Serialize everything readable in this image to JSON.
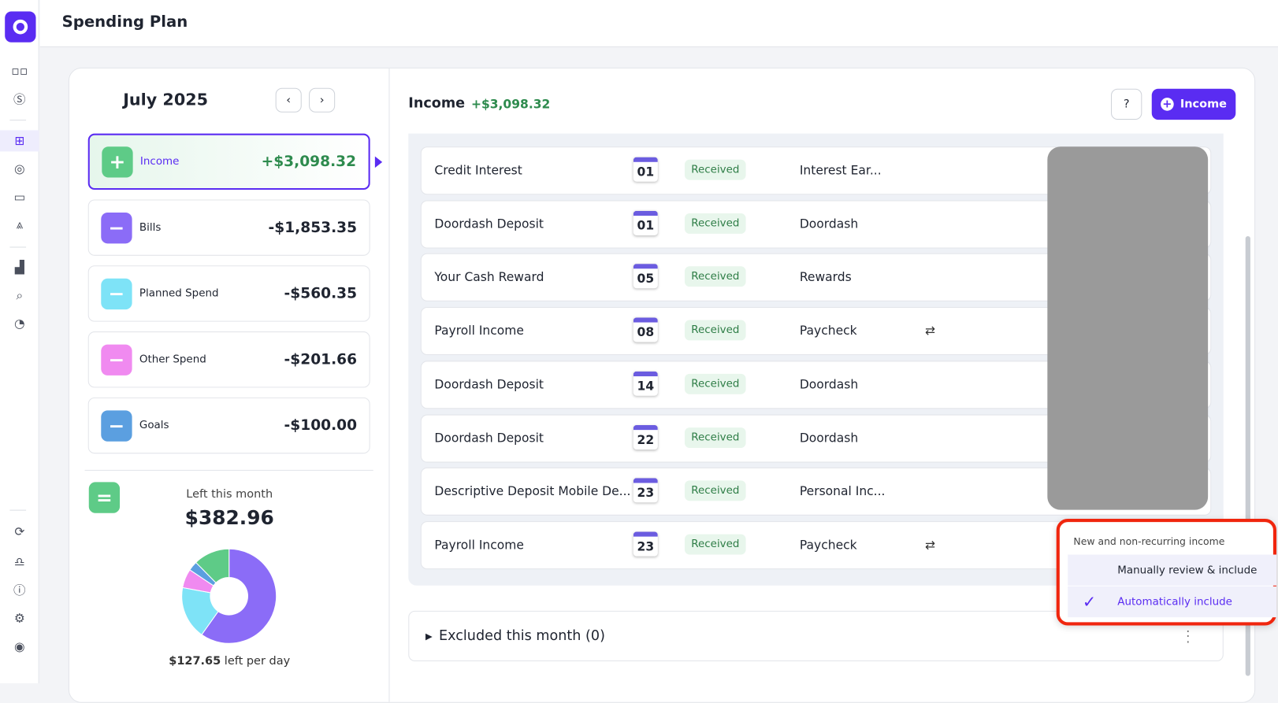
{
  "header": {
    "title": "Spending Plan"
  },
  "sidebar": {
    "icons": [
      "dashboard-icon",
      "cashflow-icon",
      "spending-plan-icon",
      "goals-icon",
      "calendar-icon",
      "investments-icon",
      "reports-icon",
      "transactions-search-icon",
      "pie-chart-icon",
      "sync-icon",
      "notifications-icon",
      "help-icon",
      "settings-icon",
      "profile-icon"
    ]
  },
  "summary": {
    "month": "July 2025",
    "categories": [
      {
        "label": "Income",
        "amount": "+$3,098.32",
        "color": "#5ecb87",
        "sign": "+"
      },
      {
        "label": "Bills",
        "amount": "-$1,853.35",
        "color": "#8b6cf7",
        "sign": "−"
      },
      {
        "label": "Planned Spend",
        "amount": "-$560.35",
        "color": "#7ee3f7",
        "sign": "−"
      },
      {
        "label": "Other Spend",
        "amount": "-$201.66",
        "color": "#f08af0",
        "sign": "−"
      },
      {
        "label": "Goals",
        "amount": "-$100.00",
        "color": "#5b9fe0",
        "sign": "−"
      }
    ],
    "left_label": "Left this month",
    "left_amount": "$382.96",
    "per_day_amount": "$127.65",
    "per_day_label": " left per day",
    "donut": [
      {
        "name": "Bills",
        "value": 1853.35,
        "color": "#8b6cf7"
      },
      {
        "name": "Planned Spend",
        "value": 560.35,
        "color": "#7ee3f7"
      },
      {
        "name": "Other Spend",
        "value": 201.66,
        "color": "#f08af0"
      },
      {
        "name": "Goals",
        "value": 100.0,
        "color": "#5b9fe0"
      },
      {
        "name": "Left",
        "value": 382.96,
        "color": "#5ecb87"
      }
    ]
  },
  "income": {
    "title": "Income",
    "total": "+$3,098.32",
    "add_label": "Income",
    "rows": [
      {
        "name": "Credit Interest",
        "day": "01",
        "status": "Received",
        "category": "Interest Ear...",
        "recurring": false
      },
      {
        "name": "Doordash Deposit",
        "day": "01",
        "status": "Received",
        "category": "Doordash",
        "recurring": false
      },
      {
        "name": "Your Cash Reward",
        "day": "05",
        "status": "Received",
        "category": "Rewards",
        "recurring": false
      },
      {
        "name": "Payroll Income",
        "day": "08",
        "status": "Received",
        "category": "Paycheck",
        "recurring": true
      },
      {
        "name": "Doordash Deposit",
        "day": "14",
        "status": "Received",
        "category": "Doordash",
        "recurring": false
      },
      {
        "name": "Doordash Deposit",
        "day": "22",
        "status": "Received",
        "category": "Doordash",
        "recurring": false
      },
      {
        "name": "Descriptive Deposit Mobile De...",
        "day": "23",
        "status": "Received",
        "category": "Personal Inc...",
        "recurring": false
      },
      {
        "name": "Payroll Income",
        "day": "23",
        "status": "Received",
        "category": "Paycheck",
        "recurring": true
      }
    ],
    "excluded_label": "Excluded this month (0)"
  },
  "menu": {
    "heading": "New and non-recurring income",
    "options": [
      {
        "label": "Manually review & include",
        "selected": false
      },
      {
        "label": "Automatically include",
        "selected": true
      }
    ]
  }
}
